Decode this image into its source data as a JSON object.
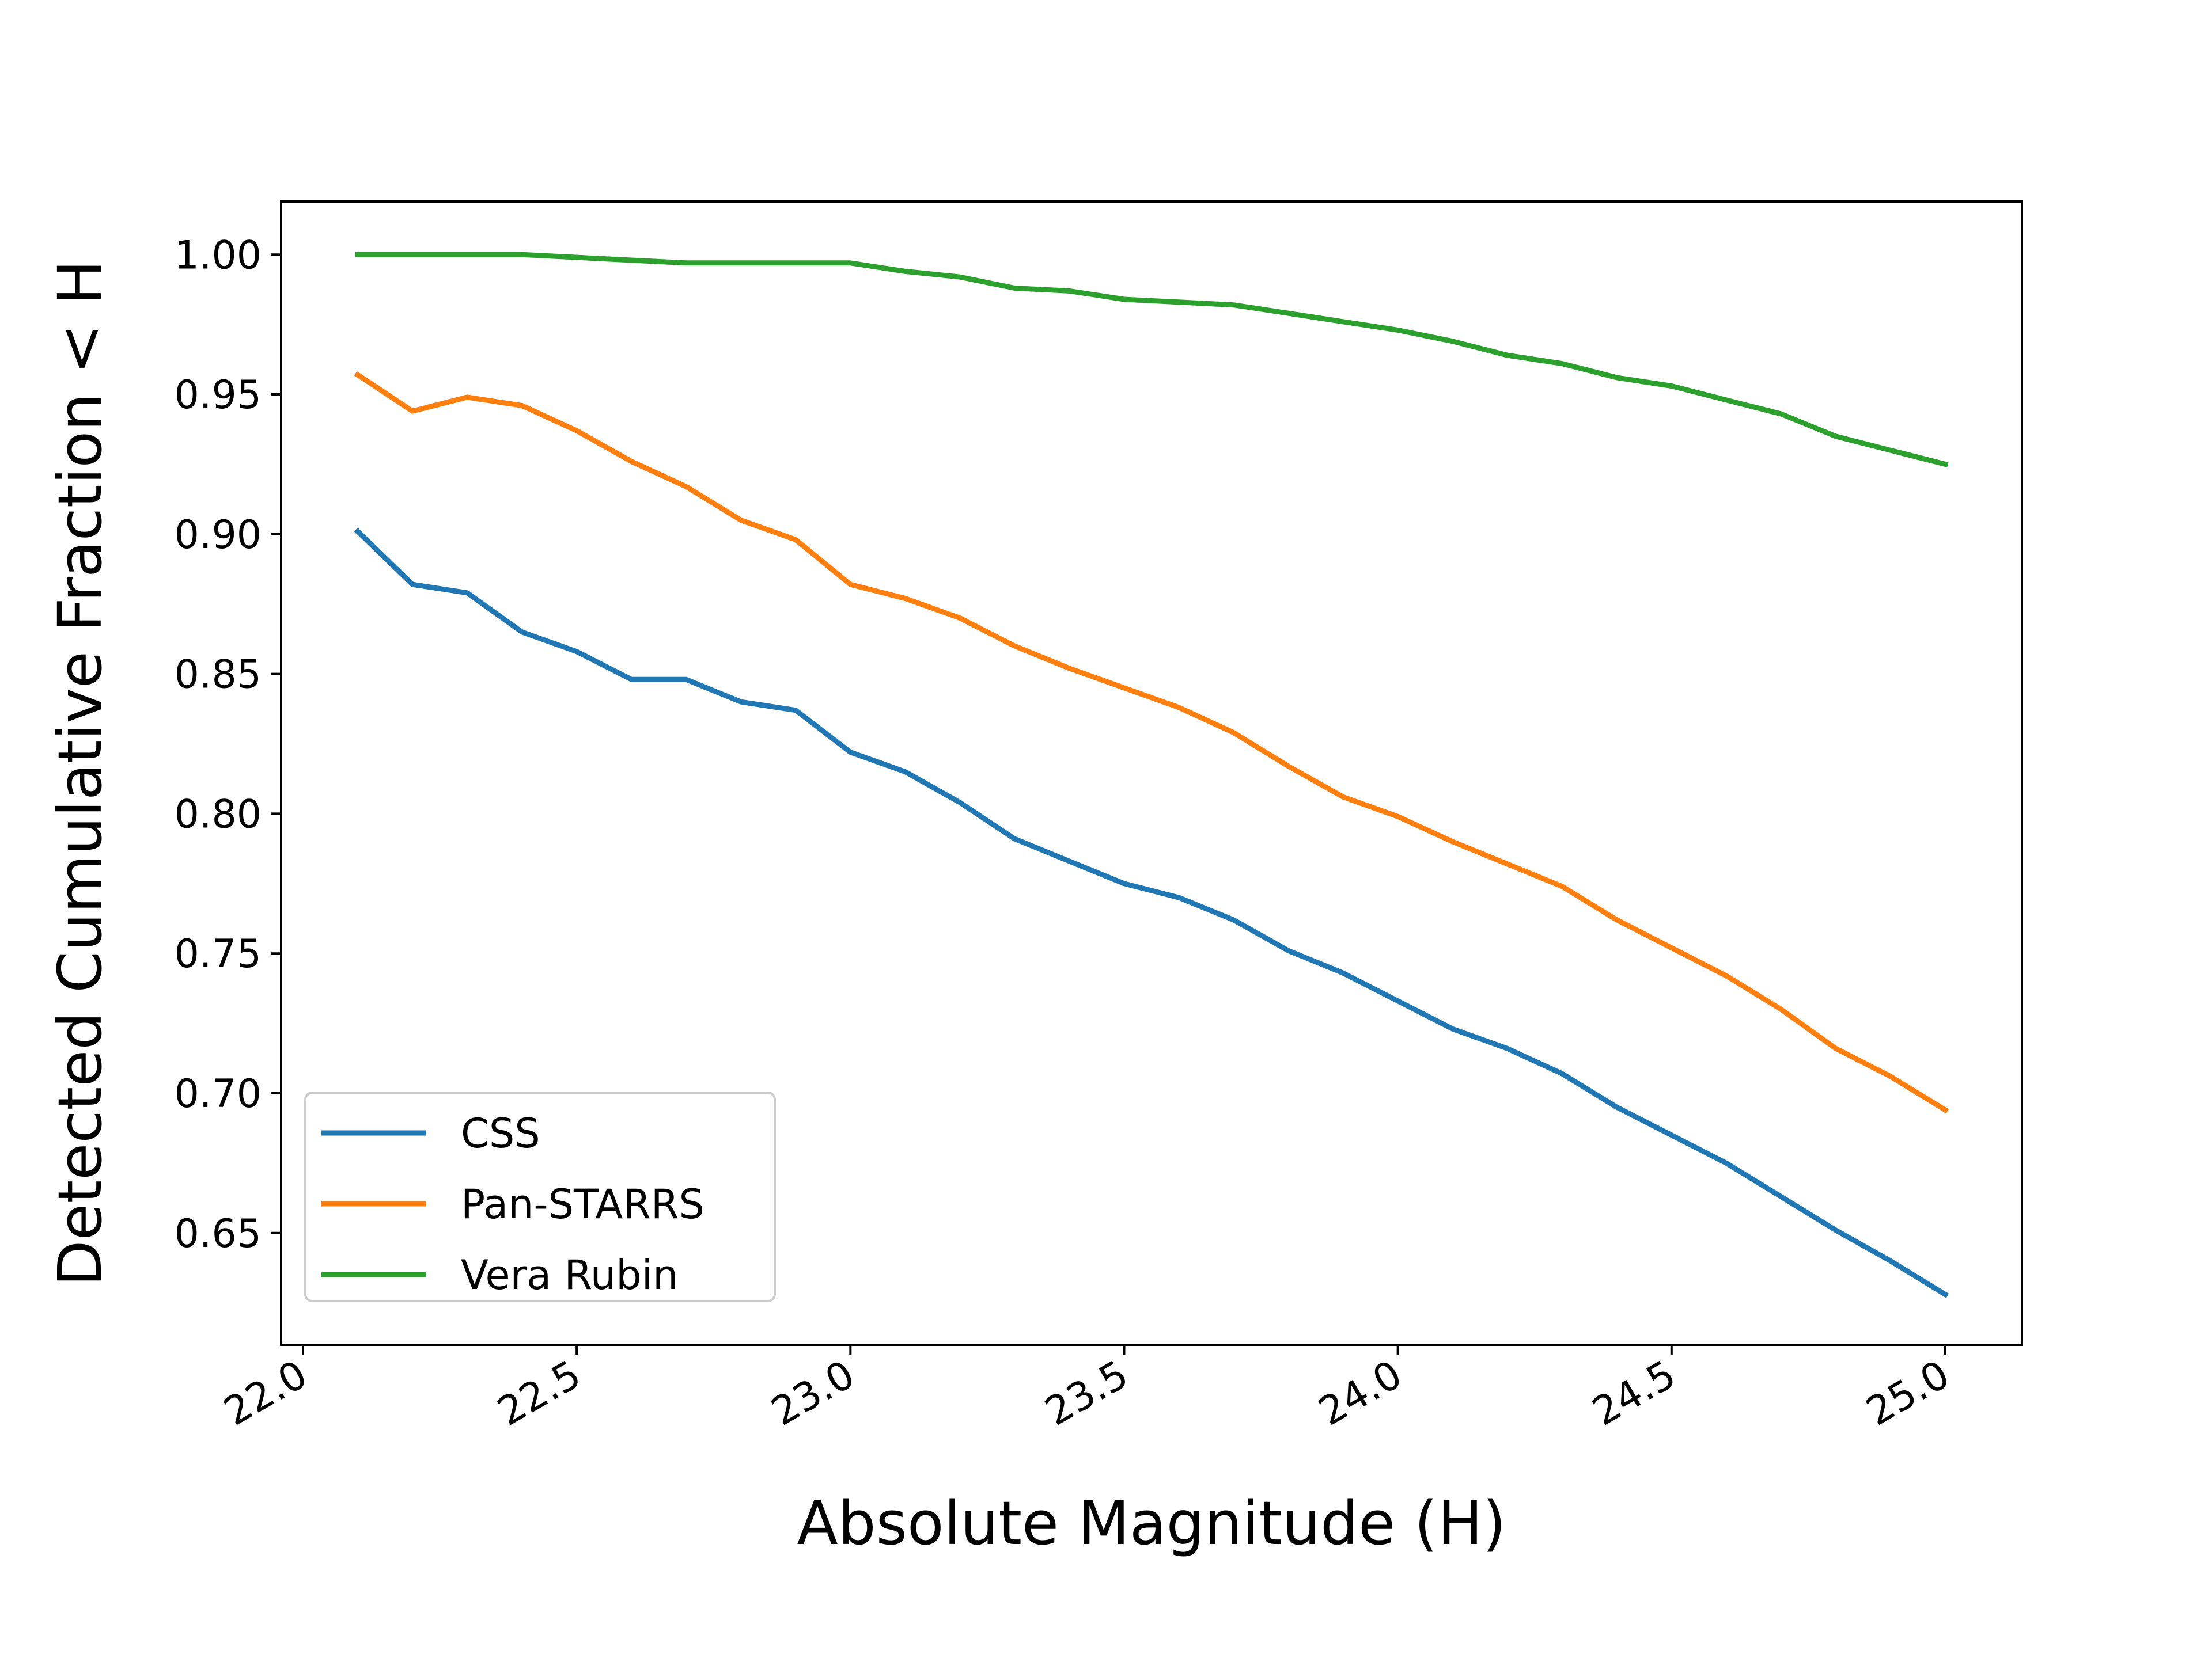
{
  "chart_data": {
    "type": "line",
    "title": "",
    "xlabel": "Absolute Magnitude (H)",
    "ylabel": "Detected Cumulative Fraction < H",
    "xlim": [
      21.96,
      25.14
    ],
    "ylim": [
      0.61,
      1.019
    ],
    "xticks": [
      22.0,
      22.5,
      23.0,
      23.5,
      24.0,
      24.5,
      25.0
    ],
    "xtick_labels": [
      "22.0",
      "22.5",
      "23.0",
      "23.5",
      "24.0",
      "24.5",
      "25.0"
    ],
    "yticks": [
      0.65,
      0.7,
      0.75,
      0.8,
      0.85,
      0.9,
      0.95,
      1.0
    ],
    "ytick_labels": [
      "0.65",
      "0.70",
      "0.75",
      "0.80",
      "0.85",
      "0.90",
      "0.95",
      "1.00"
    ],
    "grid": false,
    "legend_position": "lower-left",
    "x": [
      22.1,
      22.2,
      22.3,
      22.4,
      22.5,
      22.6,
      22.7,
      22.8,
      22.9,
      23.0,
      23.1,
      23.2,
      23.3,
      23.4,
      23.5,
      23.6,
      23.7,
      23.8,
      23.9,
      24.0,
      24.1,
      24.2,
      24.3,
      24.4,
      24.5,
      24.6,
      24.7,
      24.8,
      24.9,
      25.0
    ],
    "series": [
      {
        "name": "CSS",
        "color": "#1f77b4",
        "values": [
          0.901,
          0.882,
          0.879,
          0.865,
          0.858,
          0.848,
          0.848,
          0.84,
          0.837,
          0.822,
          0.815,
          0.804,
          0.791,
          0.783,
          0.775,
          0.77,
          0.762,
          0.751,
          0.743,
          0.733,
          0.723,
          0.716,
          0.707,
          0.695,
          0.685,
          0.675,
          0.663,
          0.651,
          0.64,
          0.628
        ]
      },
      {
        "name": "Pan-STARRS",
        "color": "#ff7f0e",
        "values": [
          0.957,
          0.944,
          0.949,
          0.946,
          0.937,
          0.926,
          0.917,
          0.905,
          0.898,
          0.882,
          0.877,
          0.87,
          0.86,
          0.852,
          0.845,
          0.838,
          0.829,
          0.817,
          0.806,
          0.799,
          0.79,
          0.782,
          0.774,
          0.762,
          0.752,
          0.742,
          0.73,
          0.716,
          0.706,
          0.694
        ]
      },
      {
        "name": "Vera Rubin",
        "color": "#2ca02c",
        "values": [
          1.0,
          1.0,
          1.0,
          1.0,
          0.999,
          0.998,
          0.997,
          0.997,
          0.997,
          0.997,
          0.994,
          0.992,
          0.988,
          0.987,
          0.984,
          0.983,
          0.982,
          0.979,
          0.976,
          0.973,
          0.969,
          0.964,
          0.961,
          0.956,
          0.953,
          0.948,
          0.943,
          0.935,
          0.93,
          0.925
        ]
      }
    ]
  }
}
